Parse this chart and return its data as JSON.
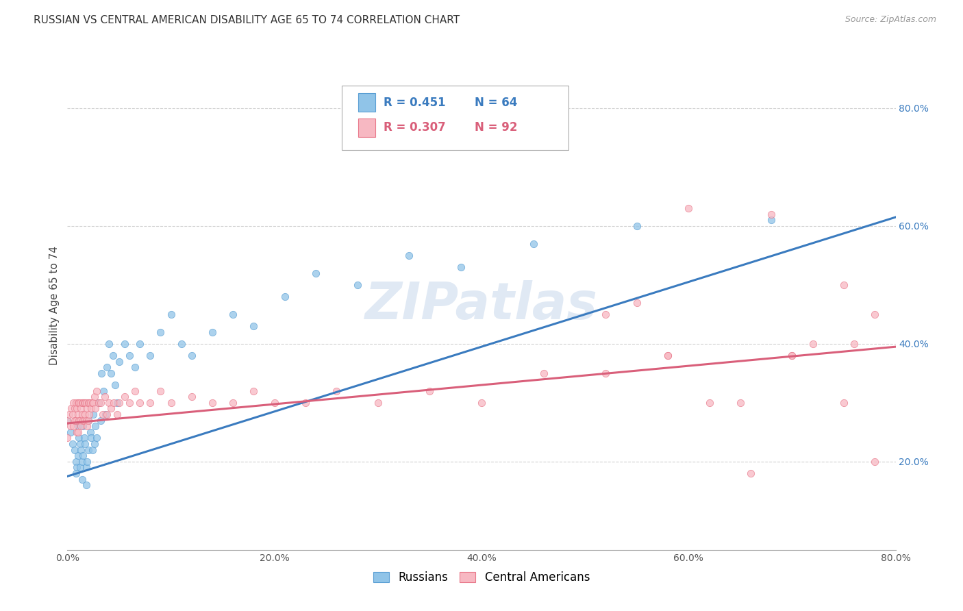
{
  "title": "RUSSIAN VS CENTRAL AMERICAN DISABILITY AGE 65 TO 74 CORRELATION CHART",
  "source": "Source: ZipAtlas.com",
  "ylabel": "Disability Age 65 to 74",
  "xlim": [
    0.0,
    0.8
  ],
  "ylim": [
    0.05,
    0.88
  ],
  "xtick_labels": [
    "0.0%",
    "20.0%",
    "40.0%",
    "60.0%",
    "80.0%"
  ],
  "xtick_vals": [
    0.0,
    0.2,
    0.4,
    0.6,
    0.8
  ],
  "ytick_labels": [
    "20.0%",
    "40.0%",
    "60.0%",
    "80.0%"
  ],
  "ytick_vals": [
    0.2,
    0.4,
    0.6,
    0.8
  ],
  "watermark": "ZIPatlas",
  "blue_color": "#90c4e8",
  "blue_edge": "#5a9fd4",
  "pink_color": "#f7b8c2",
  "pink_edge": "#e8788a",
  "blue_line_color": "#3a7bbf",
  "pink_line_color": "#d95f7a",
  "legend_blue_R": "R = 0.451",
  "legend_blue_N": "N = 64",
  "legend_pink_R": "R = 0.307",
  "legend_pink_N": "N = 92",
  "blue_line_x": [
    0.0,
    0.8
  ],
  "blue_line_y": [
    0.175,
    0.615
  ],
  "pink_line_x": [
    0.0,
    0.8
  ],
  "pink_line_y": [
    0.265,
    0.395
  ],
  "background_color": "#ffffff",
  "grid_color": "#cccccc",
  "title_fontsize": 11,
  "axis_label_fontsize": 11,
  "tick_fontsize": 10,
  "marker_size": 55,
  "russian_x": [
    0.0,
    0.003,
    0.005,
    0.007,
    0.008,
    0.008,
    0.009,
    0.01,
    0.01,
    0.011,
    0.012,
    0.012,
    0.013,
    0.014,
    0.014,
    0.015,
    0.015,
    0.016,
    0.017,
    0.018,
    0.018,
    0.019,
    0.02,
    0.02,
    0.021,
    0.022,
    0.023,
    0.024,
    0.025,
    0.026,
    0.027,
    0.028,
    0.03,
    0.032,
    0.033,
    0.035,
    0.037,
    0.038,
    0.04,
    0.042,
    0.044,
    0.046,
    0.048,
    0.05,
    0.055,
    0.06,
    0.065,
    0.07,
    0.08,
    0.09,
    0.1,
    0.11,
    0.12,
    0.14,
    0.16,
    0.18,
    0.21,
    0.24,
    0.28,
    0.33,
    0.38,
    0.45,
    0.55,
    0.68
  ],
  "russian_y": [
    0.27,
    0.25,
    0.23,
    0.22,
    0.2,
    0.18,
    0.19,
    0.26,
    0.21,
    0.24,
    0.23,
    0.19,
    0.22,
    0.2,
    0.17,
    0.26,
    0.21,
    0.24,
    0.23,
    0.19,
    0.16,
    0.2,
    0.27,
    0.22,
    0.3,
    0.25,
    0.24,
    0.22,
    0.28,
    0.23,
    0.26,
    0.24,
    0.3,
    0.27,
    0.35,
    0.32,
    0.28,
    0.36,
    0.4,
    0.35,
    0.38,
    0.33,
    0.3,
    0.37,
    0.4,
    0.38,
    0.36,
    0.4,
    0.38,
    0.42,
    0.45,
    0.4,
    0.38,
    0.42,
    0.45,
    0.43,
    0.48,
    0.52,
    0.5,
    0.55,
    0.53,
    0.57,
    0.6,
    0.61
  ],
  "central_x": [
    0.0,
    0.0,
    0.002,
    0.003,
    0.004,
    0.005,
    0.006,
    0.006,
    0.007,
    0.007,
    0.008,
    0.008,
    0.009,
    0.009,
    0.01,
    0.01,
    0.01,
    0.011,
    0.011,
    0.012,
    0.012,
    0.013,
    0.013,
    0.014,
    0.014,
    0.015,
    0.015,
    0.016,
    0.016,
    0.017,
    0.017,
    0.018,
    0.018,
    0.019,
    0.019,
    0.02,
    0.02,
    0.021,
    0.021,
    0.022,
    0.023,
    0.024,
    0.025,
    0.026,
    0.027,
    0.028,
    0.03,
    0.032,
    0.034,
    0.036,
    0.038,
    0.04,
    0.042,
    0.045,
    0.048,
    0.05,
    0.055,
    0.06,
    0.065,
    0.07,
    0.08,
    0.09,
    0.1,
    0.12,
    0.14,
    0.16,
    0.18,
    0.2,
    0.23,
    0.26,
    0.3,
    0.35,
    0.4,
    0.46,
    0.52,
    0.58,
    0.6,
    0.65,
    0.68,
    0.7,
    0.72,
    0.75,
    0.76,
    0.78,
    0.78,
    0.52,
    0.55,
    0.58,
    0.62,
    0.66,
    0.7,
    0.75
  ],
  "central_y": [
    0.27,
    0.24,
    0.28,
    0.26,
    0.29,
    0.28,
    0.26,
    0.3,
    0.29,
    0.27,
    0.3,
    0.27,
    0.29,
    0.25,
    0.3,
    0.28,
    0.25,
    0.3,
    0.27,
    0.3,
    0.27,
    0.29,
    0.26,
    0.3,
    0.28,
    0.3,
    0.27,
    0.3,
    0.27,
    0.3,
    0.28,
    0.3,
    0.27,
    0.29,
    0.26,
    0.3,
    0.27,
    0.3,
    0.28,
    0.3,
    0.29,
    0.3,
    0.3,
    0.31,
    0.29,
    0.32,
    0.3,
    0.3,
    0.28,
    0.31,
    0.28,
    0.3,
    0.29,
    0.3,
    0.28,
    0.3,
    0.31,
    0.3,
    0.32,
    0.3,
    0.3,
    0.32,
    0.3,
    0.31,
    0.3,
    0.3,
    0.32,
    0.3,
    0.3,
    0.32,
    0.3,
    0.32,
    0.3,
    0.35,
    0.35,
    0.38,
    0.63,
    0.3,
    0.62,
    0.38,
    0.4,
    0.3,
    0.4,
    0.45,
    0.2,
    0.45,
    0.47,
    0.38,
    0.3,
    0.18,
    0.38,
    0.5
  ]
}
